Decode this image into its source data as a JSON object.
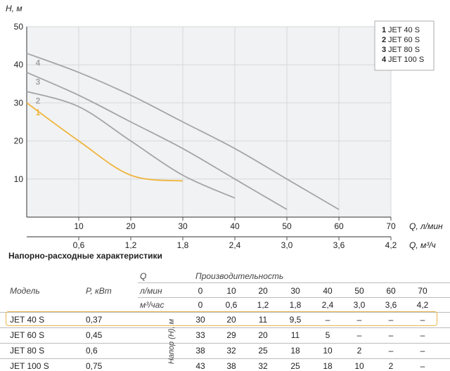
{
  "chart_data": {
    "type": "line",
    "ylabel": "H, м",
    "xlabel": "Q, л/мин",
    "xlabel2": "Q, м³/ч",
    "xlim": [
      0,
      70
    ],
    "ylim": [
      0,
      50
    ],
    "yticks": [
      "10",
      "20",
      "30",
      "40",
      "50"
    ],
    "xticks": [
      "10",
      "20",
      "30",
      "40",
      "50",
      "60",
      "70"
    ],
    "xticks2": [
      "0,6",
      "1,2",
      "1,8",
      "2,4",
      "3,0",
      "3,6",
      "4,2"
    ],
    "grid": true,
    "legend_position": "top-right",
    "series": [
      {
        "name": "JET 40 S",
        "num": "1",
        "color": "#f0b43c",
        "x": [
          0,
          10,
          20,
          30
        ],
        "y": [
          30,
          20,
          11,
          9.5
        ]
      },
      {
        "name": "JET 60 S",
        "num": "2",
        "color": "#a5a5a5",
        "x": [
          0,
          10,
          20,
          30,
          40
        ],
        "y": [
          33,
          29,
          20,
          11,
          5
        ]
      },
      {
        "name": "JET 80 S",
        "num": "3",
        "color": "#a5a5a5",
        "x": [
          0,
          10,
          20,
          30,
          40,
          50
        ],
        "y": [
          38,
          32,
          25,
          18,
          10,
          2
        ]
      },
      {
        "name": "JET 100 S",
        "num": "4",
        "color": "#a5a5a5",
        "x": [
          0,
          10,
          20,
          30,
          40,
          50,
          60
        ],
        "y": [
          43,
          38,
          32,
          25,
          18,
          10,
          2
        ]
      }
    ]
  },
  "table": {
    "title": "Напорно-расходные характеристики",
    "model_header": "Модель",
    "power_header": "P, кВт",
    "q_header": "Q",
    "lpm_header": "л/мин",
    "m3h_header": "м³/час",
    "perf_header": "Производительность",
    "head_label": "Напор (Н), м",
    "lpm_values": [
      "0",
      "10",
      "20",
      "30",
      "40",
      "50",
      "60",
      "70"
    ],
    "m3h_values": [
      "0",
      "0,6",
      "1,2",
      "1,8",
      "2,4",
      "3,0",
      "3,6",
      "4,2"
    ],
    "rows": [
      {
        "model": "JET 40 S",
        "power": "0,37",
        "values": [
          "30",
          "20",
          "11",
          "9,5",
          "–",
          "–",
          "–",
          "–"
        ]
      },
      {
        "model": "JET 60 S",
        "power": "0,45",
        "values": [
          "33",
          "29",
          "20",
          "11",
          "5",
          "–",
          "–",
          "–"
        ]
      },
      {
        "model": "JET 80 S",
        "power": "0,6",
        "values": [
          "38",
          "32",
          "25",
          "18",
          "10",
          "2",
          "–",
          "–"
        ]
      },
      {
        "model": "JET 100 S",
        "power": "0,75",
        "values": [
          "43",
          "38",
          "32",
          "25",
          "18",
          "10",
          "2",
          "–"
        ]
      }
    ]
  }
}
